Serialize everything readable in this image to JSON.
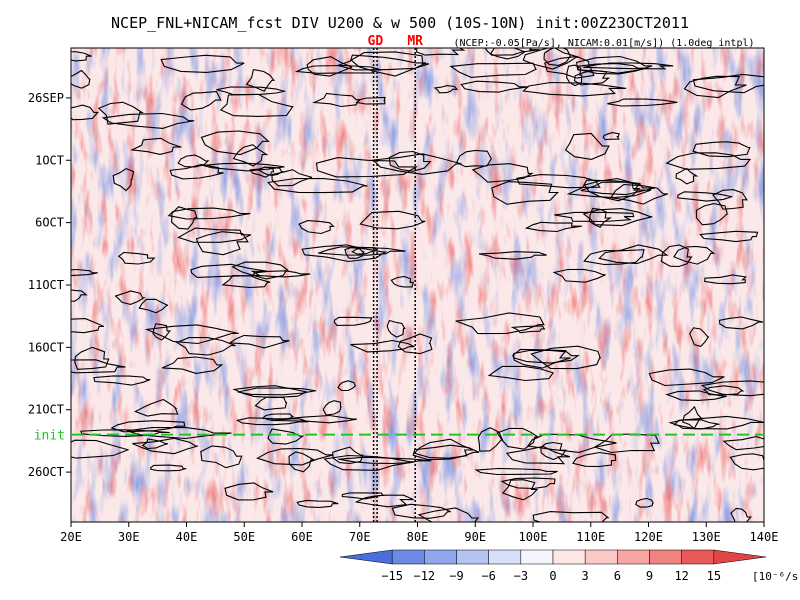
{
  "chart_data": {
    "type": "heatmap",
    "title": "NCEP_FNL+NICAM_fcst DIV U200 & w 500 (10S-10N) init:00Z23OCT2011",
    "subtitle": "(NCEP:-0.05[Pa/s], NICAM:0.01[m/s]) (1.0deg intpl)",
    "x_axis": {
      "range": [
        20,
        140
      ],
      "ticks": [
        20,
        30,
        40,
        50,
        60,
        70,
        80,
        90,
        100,
        110,
        120,
        130,
        140
      ],
      "tick_labels": [
        "20E",
        "30E",
        "40E",
        "50E",
        "60E",
        "70E",
        "80E",
        "90E",
        "100E",
        "110E",
        "120E",
        "130E",
        "140E"
      ]
    },
    "y_axis": {
      "range": [
        "22SEP2011",
        "30OCT2011"
      ],
      "ticks": [
        "26SEP",
        "1OCT",
        "6OCT",
        "11OCT",
        "16OCT",
        "21OCT",
        "26OCT"
      ],
      "tick_labels": [
        "26SEP",
        "1OCT",
        "6OCT",
        "11OCT",
        "16OCT",
        "21OCT",
        "26OCT"
      ]
    },
    "init_line": {
      "label": "init",
      "date": "23OCT2011"
    },
    "markers": [
      {
        "label": "GD",
        "lons": [
          72.4,
          73.0
        ]
      },
      {
        "label": "MR",
        "lons": [
          79.6
        ]
      }
    ],
    "colorbar": {
      "levels": [
        -15,
        -12,
        -9,
        -6,
        -3,
        0,
        3,
        6,
        9,
        12,
        15
      ],
      "tick_labels": [
        "−15",
        "−12",
        "−9",
        "−6",
        "−3",
        "0",
        "3",
        "6",
        "9",
        "12",
        "15"
      ],
      "colors": [
        "#4a6fdc",
        "#6b8ae4",
        "#8fa6ec",
        "#b3c3f2",
        "#d7e0f8",
        "#f4f5fd",
        "#fde6e4",
        "#fbc9c5",
        "#f6a7a2",
        "#f08380",
        "#e85a5a",
        "#e24545"
      ],
      "units": "[10⁻⁶/s]"
    },
    "grid": false
  }
}
